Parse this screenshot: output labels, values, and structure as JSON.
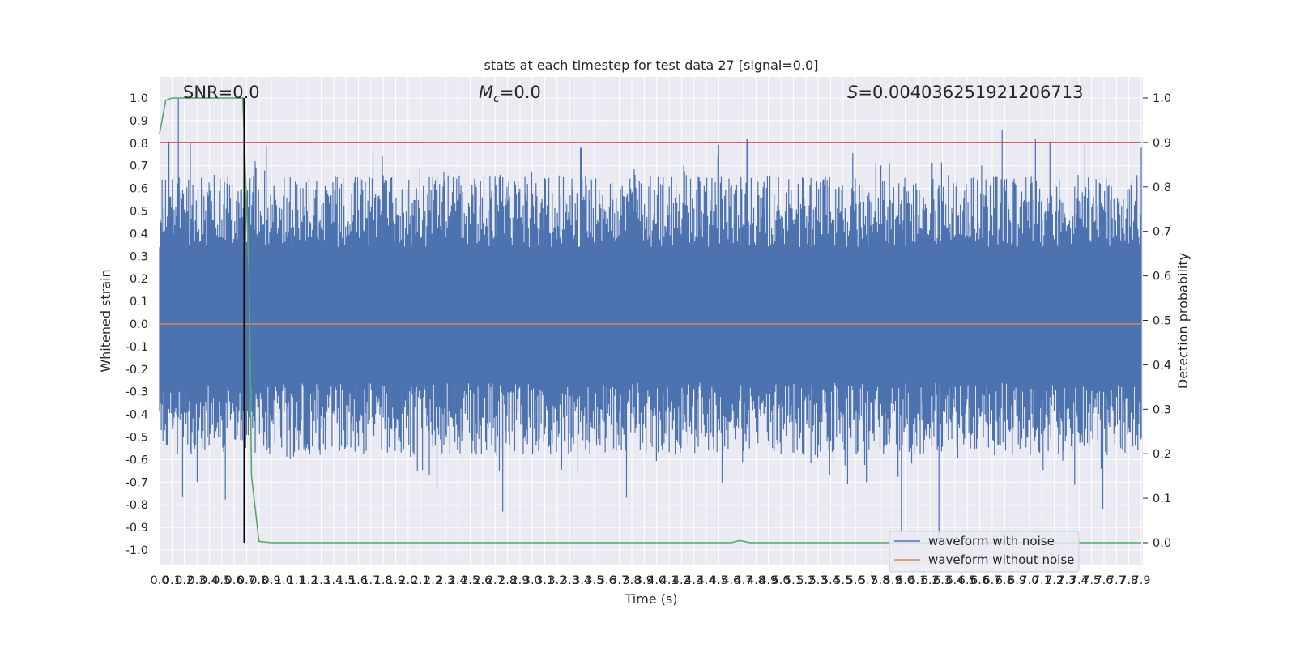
{
  "chart_data": {
    "type": "line",
    "title": "stats at each timestep for test data 27 [signal=0.0]",
    "xlabel": "Time (s)",
    "ylabel": "Whitened strain",
    "ylabel_right": "Detection probability",
    "xlim": [
      0.0,
      7.9
    ],
    "ylim": [
      -1.0,
      1.0
    ],
    "ylim_right": [
      0.0,
      1.0
    ],
    "x_ticks": [
      "0.0",
      "0.1",
      "0.2",
      "0.3",
      "0.4",
      "0.5",
      "0.6",
      "0.7",
      "0.8",
      "0.9",
      "1.0",
      "1.1",
      "1.2",
      "1.3",
      "1.4",
      "1.5",
      "1.6",
      "1.7",
      "1.8",
      "1.9",
      "2.0",
      "2.1",
      "2.2",
      "2.3",
      "2.4",
      "2.5",
      "2.6",
      "2.7",
      "2.8",
      "2.9",
      "3.0",
      "3.1",
      "3.2",
      "3.3",
      "3.4",
      "3.5",
      "3.6",
      "3.7",
      "3.8",
      "3.9",
      "4.0",
      "4.1",
      "4.2",
      "4.3",
      "4.4",
      "4.5",
      "4.6",
      "4.7",
      "4.8",
      "4.9",
      "5.0",
      "5.1",
      "5.2",
      "5.3",
      "5.4",
      "5.5",
      "5.6",
      "5.7",
      "5.8",
      "5.9",
      "6.0",
      "6.1",
      "6.2",
      "6.3",
      "6.4",
      "6.5",
      "6.6",
      "6.7",
      "6.8",
      "6.9",
      "7.0",
      "7.1",
      "7.2",
      "7.3",
      "7.4",
      "7.5",
      "7.6",
      "7.7",
      "7.8",
      "7.9"
    ],
    "y_ticks": [
      "1.0",
      "0.9",
      "0.8",
      "0.7",
      "0.6",
      "0.5",
      "0.4",
      "0.3",
      "0.2",
      "0.1",
      "0.0",
      "-0.1",
      "-0.2",
      "-0.3",
      "-0.4",
      "-0.5",
      "-0.6",
      "-0.7",
      "-0.8",
      "-0.9",
      "-1.0"
    ],
    "y_ticks_right": [
      "1.0",
      "0.9",
      "0.8",
      "0.7",
      "0.6",
      "0.5",
      "0.4",
      "0.3",
      "0.2",
      "0.1",
      "0.0"
    ],
    "grid": true,
    "legend_position": "bottom-right",
    "annotations": {
      "snr": "SNR=0.0",
      "mc_var": "M",
      "mc_sub": "c",
      "mc_value": "=0.0",
      "s_var": "S",
      "s_value": "=0.004036251921206713"
    },
    "threshold": 0.9,
    "marker_time": 0.68,
    "noise_envelope": {
      "upper_base": 0.5,
      "lower_base": -0.42,
      "spikes_up": [
        [
          0.15,
          1.0
        ],
        [
          0.25,
          0.8
        ],
        [
          0.77,
          0.72
        ],
        [
          3.39,
          0.78
        ],
        [
          4.73,
          0.82
        ],
        [
          6.78,
          0.86
        ],
        [
          7.05,
          0.82
        ],
        [
          7.9,
          0.78
        ]
      ],
      "spikes_down": [
        [
          0.3,
          -0.7
        ],
        [
          2.76,
          -0.83
        ],
        [
          5.97,
          -0.92
        ],
        [
          6.27,
          -0.97
        ],
        [
          7.59,
          -0.82
        ]
      ]
    },
    "series": [
      {
        "name": "waveform with noise",
        "color": "#4c72b0"
      },
      {
        "name": "waveform without noise",
        "color": "#dd8452",
        "x": [
          0.0,
          7.9
        ],
        "y": [
          0.0,
          0.0
        ]
      },
      {
        "color": "#55a868",
        "axis": "right",
        "x": [
          0.0,
          0.05,
          0.1,
          0.2,
          0.3,
          0.4,
          0.5,
          0.6,
          0.67,
          0.72,
          0.74,
          0.8,
          0.9,
          1.0,
          4.6,
          4.67,
          4.75,
          4.9,
          7.9
        ],
        "y": [
          0.92,
          0.995,
          1.0,
          1.0,
          1.0,
          1.0,
          1.0,
          1.0,
          1.0,
          0.6,
          0.15,
          0.003,
          0.0,
          0.0,
          0.0,
          0.005,
          0.0,
          0.0,
          0.0
        ]
      },
      {
        "color": "#c44e52",
        "axis": "right",
        "x": [
          0.0,
          7.9
        ],
        "y": [
          0.9,
          0.9
        ]
      }
    ]
  }
}
